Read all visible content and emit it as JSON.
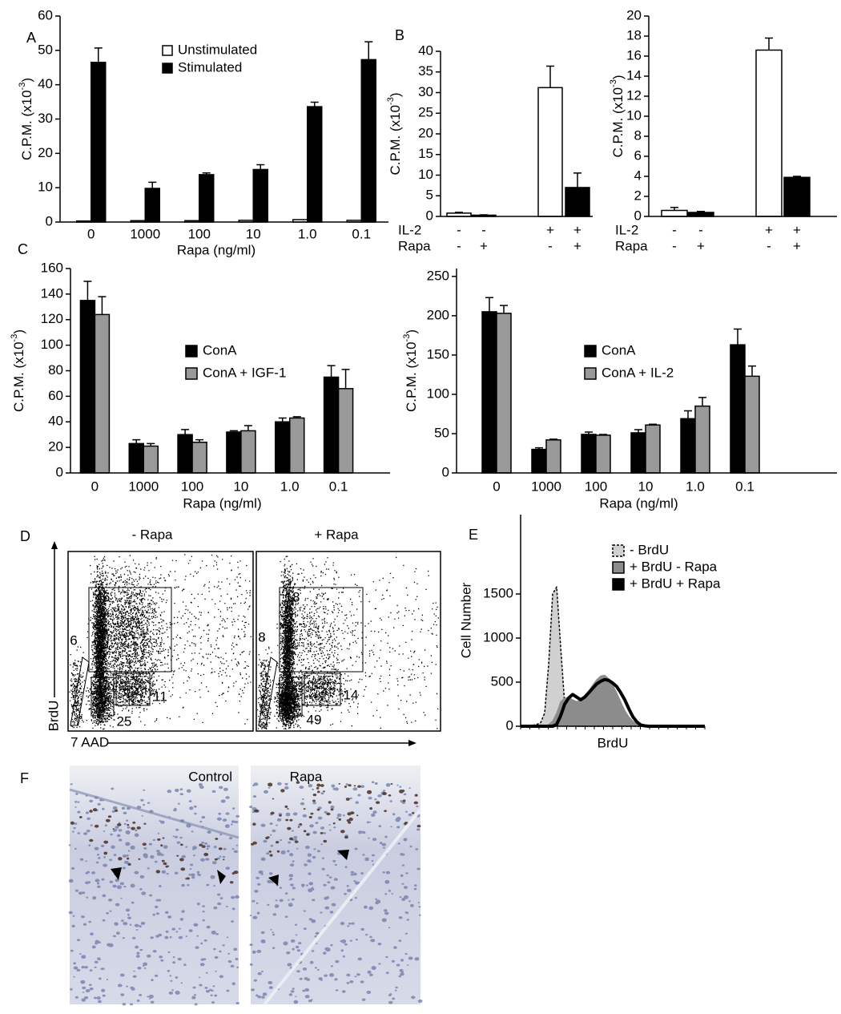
{
  "chart_data": [
    {
      "type": "bar",
      "panel": "A",
      "y_label": {
        "text": "C.P.M. (x10",
        "sup": "-3",
        "end": ")"
      },
      "x_label": "Rapa (ng/ml)",
      "categories": [
        "0",
        "1000",
        "100",
        "10",
        "1.0",
        "0.1"
      ],
      "series": [
        {
          "name": "Unstimulated",
          "color": "#ffffff",
          "values": [
            0.3,
            0.4,
            0.4,
            0.5,
            0.7,
            0.5
          ]
        },
        {
          "name": "Stimulated",
          "color": "#000000",
          "values": [
            46.5,
            9.8,
            13.8,
            15.3,
            33.6,
            47.3
          ],
          "errors": [
            4.2,
            1.8,
            0.5,
            1.4,
            1.3,
            5.2
          ]
        }
      ],
      "ylim": [
        0,
        60
      ],
      "yticks": [
        0,
        10,
        20,
        30,
        40,
        50,
        60
      ],
      "legend": "top-center"
    },
    {
      "type": "bar",
      "panel": "B",
      "y_label": {
        "text": "C.P.M. (x10",
        "sup": "-3",
        "end": ")"
      },
      "series": [
        {
          "colors": [
            "#ffffff",
            "#000000",
            "#ffffff",
            "#000000"
          ],
          "values": [
            0.8,
            0.3,
            31.2,
            7.0
          ],
          "errors": [
            0.2,
            0.1,
            5.2,
            3.5
          ]
        }
      ],
      "label_rows": [
        {
          "name": "IL-2",
          "labels": [
            "-",
            "-",
            "+",
            "+"
          ]
        },
        {
          "name": "Rapa",
          "labels": [
            "-",
            "+",
            "-",
            "+"
          ]
        }
      ],
      "ylim": [
        0,
        40
      ],
      "yticks": [
        0,
        5,
        10,
        15,
        20,
        25,
        30,
        35,
        40
      ]
    },
    {
      "type": "bar",
      "y_label": {
        "text": "C.P.M. (x10",
        "sup": "-3",
        "end": ")"
      },
      "series": [
        {
          "colors": [
            "#ffffff",
            "#000000",
            "#ffffff",
            "#000000"
          ],
          "values": [
            0.6,
            0.4,
            16.6,
            3.9
          ],
          "errors": [
            0.3,
            0.1,
            1.2,
            0.1
          ]
        }
      ],
      "label_rows": [
        {
          "name": "IL-2",
          "labels": [
            "-",
            "-",
            "+",
            "+"
          ]
        },
        {
          "name": "Rapa",
          "labels": [
            "-",
            "+",
            "-",
            "+"
          ]
        }
      ],
      "ylim": [
        0,
        20
      ],
      "yticks": [
        0,
        2,
        4,
        6,
        8,
        10,
        12,
        14,
        16,
        18,
        20
      ]
    },
    {
      "type": "bar",
      "panel": "C",
      "y_label": {
        "text": "C.P.M. (x10",
        "sup": "-3",
        "end": ")"
      },
      "x_label": "Rapa (ng/ml)",
      "categories": [
        "0",
        "1000",
        "100",
        "10",
        "1.0",
        "0.1"
      ],
      "series": [
        {
          "name": "ConA",
          "color": "#000000",
          "values": [
            135,
            23,
            30,
            32,
            40,
            75
          ],
          "errors": [
            15,
            3,
            4,
            1,
            3,
            9
          ]
        },
        {
          "name": "ConA + IGF-1",
          "color": "#999999",
          "values": [
            124,
            21,
            24,
            33,
            43,
            66
          ],
          "errors": [
            14,
            2,
            2,
            4,
            1,
            15
          ]
        }
      ],
      "ylim": [
        0,
        160
      ],
      "yticks": [
        0,
        20,
        40,
        60,
        80,
        100,
        120,
        140,
        160
      ],
      "legend": "center-right"
    },
    {
      "type": "bar",
      "y_label": {
        "text": "C.P.M. (x10",
        "sup": "-3",
        "end": ")"
      },
      "x_label": "Rapa (ng/ml)",
      "categories": [
        "0",
        "1000",
        "100",
        "10",
        "1.0",
        "0.1"
      ],
      "series": [
        {
          "name": "ConA",
          "color": "#000000",
          "values": [
            205,
            30,
            49,
            51,
            69,
            163
          ],
          "errors": [
            18,
            2,
            3,
            4,
            10,
            20
          ]
        },
        {
          "name": "ConA + IL-2",
          "color": "#999999",
          "values": [
            203,
            42,
            48,
            61,
            85,
            123
          ],
          "errors": [
            10,
            1,
            1,
            1,
            11,
            13
          ]
        }
      ],
      "ylim": [
        0,
        260
      ],
      "yticks": [
        0,
        50,
        100,
        150,
        200,
        250
      ],
      "legend": "center-right"
    },
    {
      "type": "area",
      "panel": "E",
      "y_label": "Cell Number",
      "x_label": "BrdU",
      "series": [
        {
          "name": "- BrdU",
          "fill": "#d0d0d0",
          "color": "#000000",
          "line_style": "dashed",
          "line_width": 1.5,
          "values": [
            0,
            0,
            5,
            10,
            20,
            40,
            150,
            700,
            1500,
            1580,
            900,
            250,
            40,
            10,
            0,
            0,
            0,
            0,
            0,
            0,
            0,
            0,
            0,
            0,
            0,
            0,
            0,
            0,
            0,
            0,
            0,
            0,
            0,
            0,
            0,
            0,
            0,
            0,
            0,
            0,
            0,
            0,
            0,
            0,
            0,
            0,
            0
          ]
        },
        {
          "name": "+ BrdU - Rapa",
          "fill": "#8c8c8c",
          "color": "#8c8c8c",
          "line_style": "solid",
          "line_width": 1,
          "values": [
            0,
            0,
            0,
            0,
            0,
            0,
            5,
            20,
            60,
            150,
            280,
            320,
            330,
            300,
            280,
            300,
            350,
            400,
            470,
            530,
            570,
            580,
            540,
            470,
            380,
            280,
            180,
            110,
            60,
            20,
            5,
            0,
            0,
            0,
            0,
            0,
            0,
            0,
            0,
            0,
            0,
            0,
            0,
            0,
            0,
            0,
            0
          ]
        },
        {
          "name": "+ BrdU + Rapa",
          "fill": "none",
          "color": "#000000",
          "line_style": "solid",
          "line_width": 4,
          "values": [
            0,
            0,
            0,
            0,
            0,
            0,
            0,
            0,
            0,
            20,
            120,
            250,
            320,
            360,
            330,
            300,
            330,
            380,
            430,
            480,
            510,
            530,
            520,
            490,
            450,
            380,
            300,
            200,
            110,
            50,
            15,
            5,
            0,
            0,
            0,
            0,
            0,
            0,
            0,
            0,
            0,
            0,
            0,
            0,
            0,
            0,
            0
          ]
        }
      ],
      "ylim": [
        0,
        2400
      ],
      "yticks": [
        0,
        500,
        1000,
        1500
      ],
      "legend": "top-right"
    }
  ],
  "panel_d": {
    "panel": "D",
    "y_axis": "BrdU",
    "x_axis": "7 AAD",
    "plots": [
      {
        "title": "- Rapa",
        "gates": [
          46,
          6,
          25,
          11
        ]
      },
      {
        "title": "+ Rapa",
        "gates": [
          18,
          8,
          49,
          14
        ]
      }
    ]
  },
  "panel_f": {
    "panel": "F",
    "images": [
      {
        "label": "Control"
      },
      {
        "label": "Rapa"
      }
    ]
  }
}
